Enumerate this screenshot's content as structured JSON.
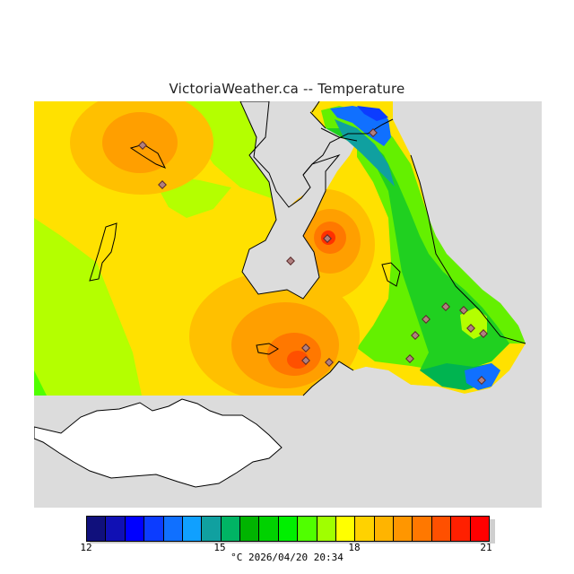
{
  "header": {
    "title": "VictoriaWeather.ca -- Temperature"
  },
  "legend": {
    "colors": [
      "#10107c",
      "#1010b4",
      "#0000ff",
      "#0c3cff",
      "#1070ff",
      "#10a0ff",
      "#10a0a0",
      "#00b464",
      "#00b400",
      "#00d200",
      "#00f000",
      "#50ff00",
      "#a0ff00",
      "#ffff00",
      "#ffd200",
      "#ffb400",
      "#ff9600",
      "#ff7800",
      "#ff5000",
      "#ff2000",
      "#ff0000"
    ],
    "tick_labels": [
      "12",
      "15",
      "18",
      "21"
    ],
    "units_time": "°C  2026/04/20 20:34"
  },
  "map_colors": {
    "background": "#dcdcdc",
    "land_blank": "#ffffff",
    "field_yellow": "#ffe100",
    "field_lime": "#b4ff00",
    "field_orange_light": "#ffc000",
    "field_orange": "#ff9f00",
    "field_orange_dark": "#ff7800",
    "field_red": "#ff3000",
    "field_green_light": "#64f000",
    "field_green": "#20d020",
    "field_green_dark": "#00b450",
    "field_teal": "#10a0a0",
    "field_blue": "#1070ff",
    "field_blue_dark": "#0c3cff"
  },
  "stations_icon": "diamond-marker-icon"
}
